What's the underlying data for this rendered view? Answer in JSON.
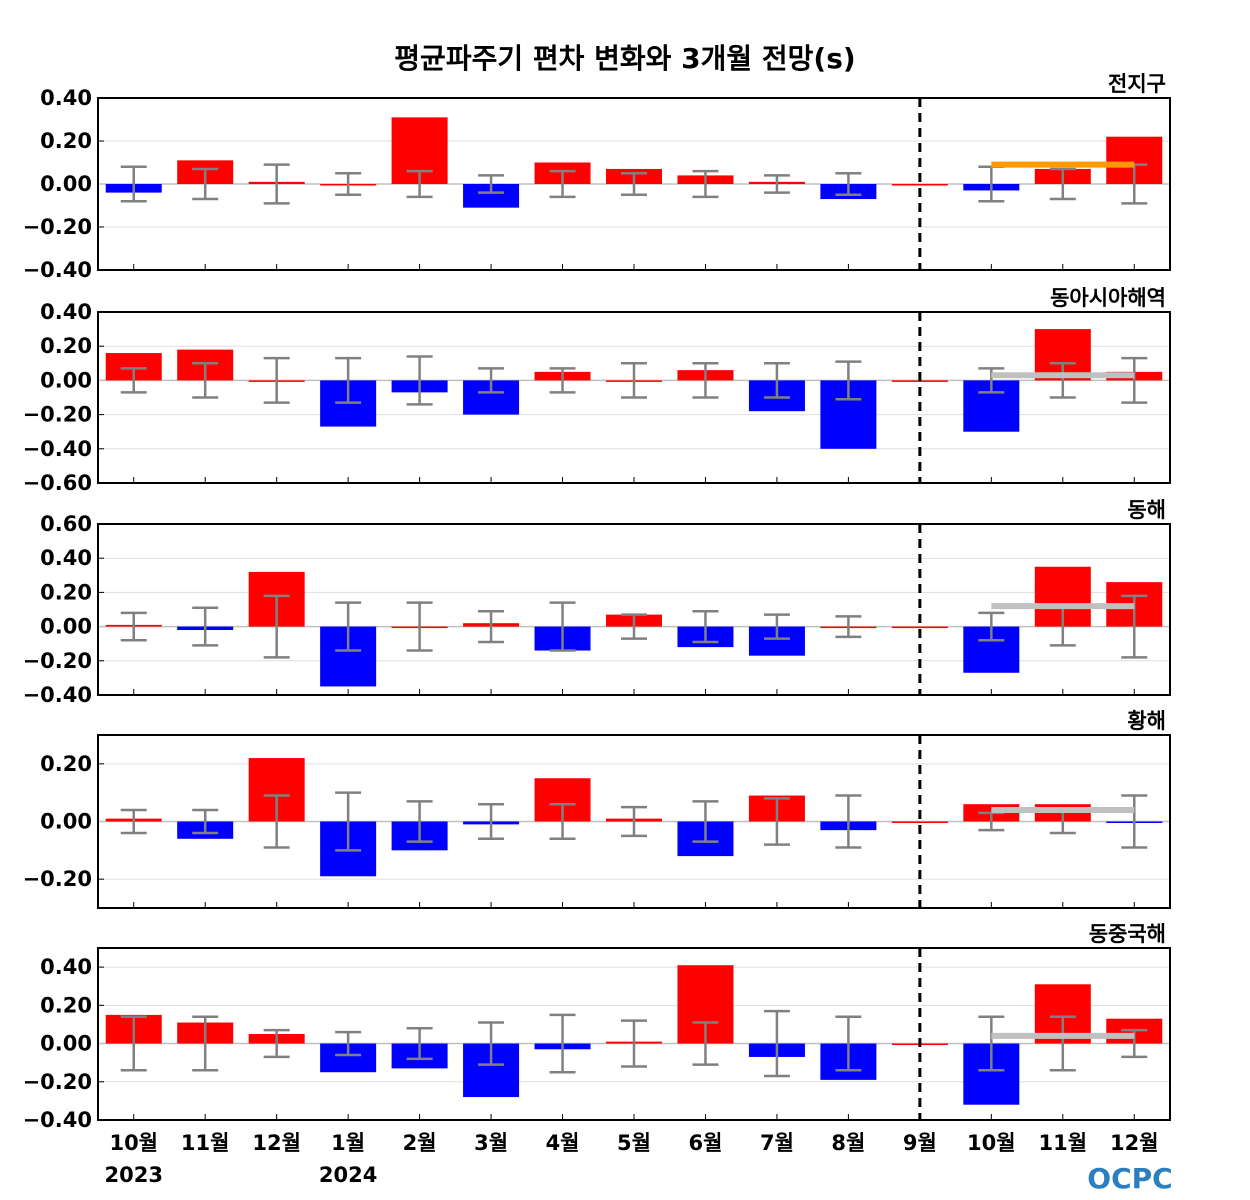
{
  "chart_data": {
    "type": "bar",
    "title": "평균파주기 편차 변화와 3개월 전망(s)",
    "categories": [
      "10월",
      "11월",
      "12월",
      "1월",
      "2월",
      "3월",
      "4월",
      "5월",
      "6월",
      "7월",
      "8월",
      "9월",
      "10월",
      "11월",
      "12월"
    ],
    "year_labels": [
      {
        "index": 0,
        "label": "2023"
      },
      {
        "index": 3,
        "label": "2024"
      }
    ],
    "forecast_divider_after": "8월",
    "colors": {
      "positive": "#ff0000",
      "negative": "#0000ff",
      "error": "#808080",
      "forecast_line_first": "#ff9900",
      "forecast_line": "#c0c0c0"
    },
    "logo": "OCPC",
    "panels": [
      {
        "name": "전지구",
        "ylim": [
          -0.4,
          0.4
        ],
        "yticks": [
          "0.40",
          "0.20",
          "0.00",
          "−0.20",
          "−0.40"
        ],
        "ytick_values": [
          0.4,
          0.2,
          0,
          -0.2,
          -0.4
        ],
        "values": [
          -0.04,
          0.11,
          0.01,
          0.0,
          0.31,
          -0.11,
          0.1,
          0.07,
          0.04,
          0.01,
          -0.07,
          0,
          -0.03,
          0.07,
          0.22
        ],
        "errors": [
          0.08,
          0.07,
          0.09,
          0.05,
          0.06,
          0.04,
          0.06,
          0.05,
          0.06,
          0.04,
          0.05,
          0,
          0.08,
          0.07,
          0.09
        ],
        "forecast_line": 0.09
      },
      {
        "name": "동아시아해역",
        "ylim": [
          -0.6,
          0.4
        ],
        "yticks": [
          "0.40",
          "0.20",
          "0.00",
          "−0.20",
          "−0.40",
          "−0.60"
        ],
        "ytick_values": [
          0.4,
          0.2,
          0,
          -0.2,
          -0.4,
          -0.6
        ],
        "values": [
          0.16,
          0.18,
          0.0,
          -0.27,
          -0.07,
          -0.2,
          0.05,
          0.0,
          0.06,
          -0.18,
          -0.4,
          0,
          -0.3,
          0.3,
          0.05
        ],
        "errors": [
          0.07,
          0.1,
          0.13,
          0.13,
          0.14,
          0.07,
          0.07,
          0.1,
          0.1,
          0.1,
          0.11,
          0,
          0.07,
          0.1,
          0.13
        ],
        "forecast_line": 0.03
      },
      {
        "name": "동해",
        "ylim": [
          -0.4,
          0.6
        ],
        "yticks": [
          "0.60",
          "0.40",
          "0.20",
          "0.00",
          "−0.20",
          "−0.40"
        ],
        "ytick_values": [
          0.6,
          0.4,
          0.2,
          0,
          -0.2,
          -0.4
        ],
        "values": [
          0.01,
          -0.02,
          0.32,
          -0.35,
          0.0,
          0.02,
          -0.14,
          0.07,
          -0.12,
          -0.17,
          0.0,
          0,
          -0.27,
          0.35,
          0.26
        ],
        "errors": [
          0.08,
          0.11,
          0.18,
          0.14,
          0.14,
          0.09,
          0.14,
          0.07,
          0.09,
          0.07,
          0.06,
          0,
          0.08,
          0.11,
          0.18
        ],
        "forecast_line": 0.12
      },
      {
        "name": "황해",
        "ylim": [
          -0.3,
          0.3
        ],
        "yticks": [
          "0.20",
          "0.00",
          "−0.20"
        ],
        "ytick_values": [
          0.2,
          0,
          -0.2
        ],
        "values": [
          0.01,
          -0.06,
          0.22,
          -0.19,
          -0.1,
          -0.01,
          0.15,
          0.01,
          -0.12,
          0.09,
          -0.03,
          0,
          0.06,
          0.06,
          -0.005
        ],
        "errors": [
          0.04,
          0.04,
          0.09,
          0.1,
          0.07,
          0.06,
          0.06,
          0.05,
          0.07,
          0.08,
          0.09,
          0,
          0.03,
          0.04,
          0.09
        ],
        "forecast_line": 0.04
      },
      {
        "name": "동중국해",
        "ylim": [
          -0.4,
          0.5
        ],
        "yticks": [
          "0.40",
          "0.20",
          "0.00",
          "−0.20",
          "−0.40"
        ],
        "ytick_values": [
          0.4,
          0.2,
          0,
          -0.2,
          -0.4
        ],
        "values": [
          0.15,
          0.11,
          0.05,
          -0.15,
          -0.13,
          -0.28,
          -0.03,
          0.01,
          0.41,
          -0.07,
          -0.19,
          0,
          -0.32,
          0.31,
          0.13
        ],
        "errors": [
          0.14,
          0.14,
          0.07,
          0.06,
          0.08,
          0.11,
          0.15,
          0.12,
          0.11,
          0.17,
          0.14,
          0,
          0.14,
          0.14,
          0.07
        ],
        "forecast_line": 0.04
      }
    ]
  }
}
